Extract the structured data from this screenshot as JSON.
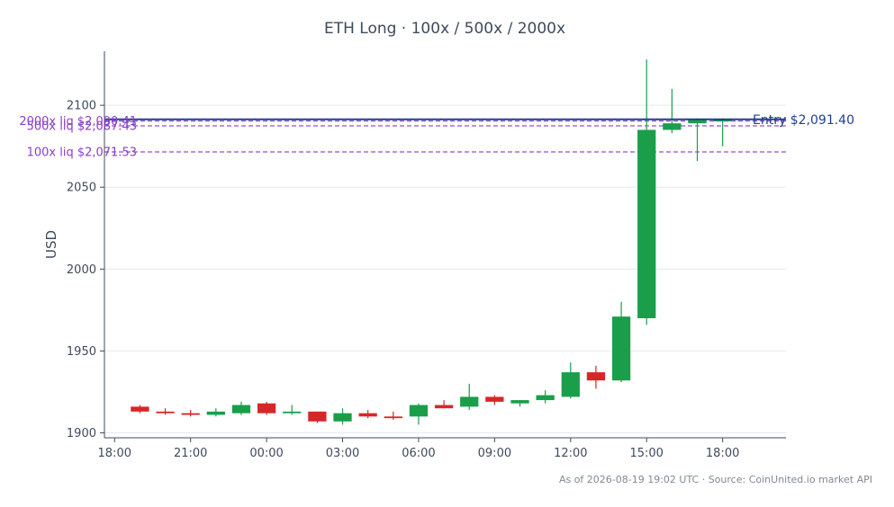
{
  "chart_data": {
    "type": "candlestick",
    "title": "ETH Long · 100x / 500x / 2000x",
    "ylabel": "USD",
    "ylim": [
      1897,
      2133
    ],
    "x_hours_range": [
      17.6,
      44.5
    ],
    "x_ticks": [
      {
        "hour": 18,
        "label": "18:00"
      },
      {
        "hour": 21,
        "label": "21:00"
      },
      {
        "hour": 24,
        "label": "00:00"
      },
      {
        "hour": 27,
        "label": "03:00"
      },
      {
        "hour": 30,
        "label": "06:00"
      },
      {
        "hour": 33,
        "label": "09:00"
      },
      {
        "hour": 36,
        "label": "12:00"
      },
      {
        "hour": 39,
        "label": "15:00"
      },
      {
        "hour": 42,
        "label": "18:00"
      }
    ],
    "y_ticks": [
      1900,
      1950,
      2000,
      2050,
      2100
    ],
    "grid": true,
    "colors": {
      "up": "#1a9e4a",
      "down": "#d62728",
      "entry": "#1f3f8f",
      "liq": "#8a3fc9",
      "axis": "#3d4b5c"
    },
    "candles": [
      {
        "hour": 19,
        "open": 1916,
        "high": 1917,
        "low": 1912,
        "close": 1913
      },
      {
        "hour": 20,
        "open": 1913,
        "high": 1915,
        "low": 1911,
        "close": 1912
      },
      {
        "hour": 21,
        "open": 1912,
        "high": 1914,
        "low": 1910,
        "close": 1911
      },
      {
        "hour": 22,
        "open": 1911,
        "high": 1915,
        "low": 1910,
        "close": 1913
      },
      {
        "hour": 23,
        "open": 1912,
        "high": 1919,
        "low": 1911,
        "close": 1917
      },
      {
        "hour": 24,
        "open": 1918,
        "high": 1919,
        "low": 1911,
        "close": 1912
      },
      {
        "hour": 25,
        "open": 1912,
        "high": 1917,
        "low": 1911,
        "close": 1913
      },
      {
        "hour": 26,
        "open": 1913,
        "high": 1913,
        "low": 1906,
        "close": 1907
      },
      {
        "hour": 27,
        "open": 1907,
        "high": 1915,
        "low": 1905,
        "close": 1912
      },
      {
        "hour": 28,
        "open": 1912,
        "high": 1914,
        "low": 1909,
        "close": 1910
      },
      {
        "hour": 29,
        "open": 1910,
        "high": 1913,
        "low": 1908,
        "close": 1909
      },
      {
        "hour": 30,
        "open": 1910,
        "high": 1918,
        "low": 1905,
        "close": 1917
      },
      {
        "hour": 31,
        "open": 1917,
        "high": 1920,
        "low": 1915,
        "close": 1915
      },
      {
        "hour": 32,
        "open": 1916,
        "high": 1930,
        "low": 1914,
        "close": 1922
      },
      {
        "hour": 33,
        "open": 1922,
        "high": 1923,
        "low": 1917,
        "close": 1919
      },
      {
        "hour": 34,
        "open": 1918,
        "high": 1920,
        "low": 1916,
        "close": 1920
      },
      {
        "hour": 35,
        "open": 1920,
        "high": 1926,
        "low": 1918,
        "close": 1923
      },
      {
        "hour": 36,
        "open": 1922,
        "high": 1943,
        "low": 1921,
        "close": 1937
      },
      {
        "hour": 37,
        "open": 1937,
        "high": 1941,
        "low": 1927,
        "close": 1932
      },
      {
        "hour": 38,
        "open": 1932,
        "high": 1980,
        "low": 1931,
        "close": 1971
      },
      {
        "hour": 39,
        "open": 1970,
        "high": 2128,
        "low": 1966,
        "close": 2085
      },
      {
        "hour": 40,
        "open": 2085,
        "high": 2110,
        "low": 2083,
        "close": 2089
      },
      {
        "hour": 41,
        "open": 2089,
        "high": 2092,
        "low": 2066,
        "close": 2091
      },
      {
        "hour": 42,
        "open": 2091,
        "high": 2092,
        "low": 2075,
        "close": 2091
      }
    ],
    "entry": {
      "price": 2091.4,
      "label": "Entry $2,091.40"
    },
    "liquidations": [
      {
        "price": 2090.41,
        "label": "2000x liq $2,090.41"
      },
      {
        "price": 2087.43,
        "label": "500x liq $2,087.43"
      },
      {
        "price": 2071.53,
        "label": "100x liq $2,071.53"
      }
    ],
    "footer": "As of 2026-08-19 19:02 UTC · Source: CoinUnited.io market API"
  }
}
